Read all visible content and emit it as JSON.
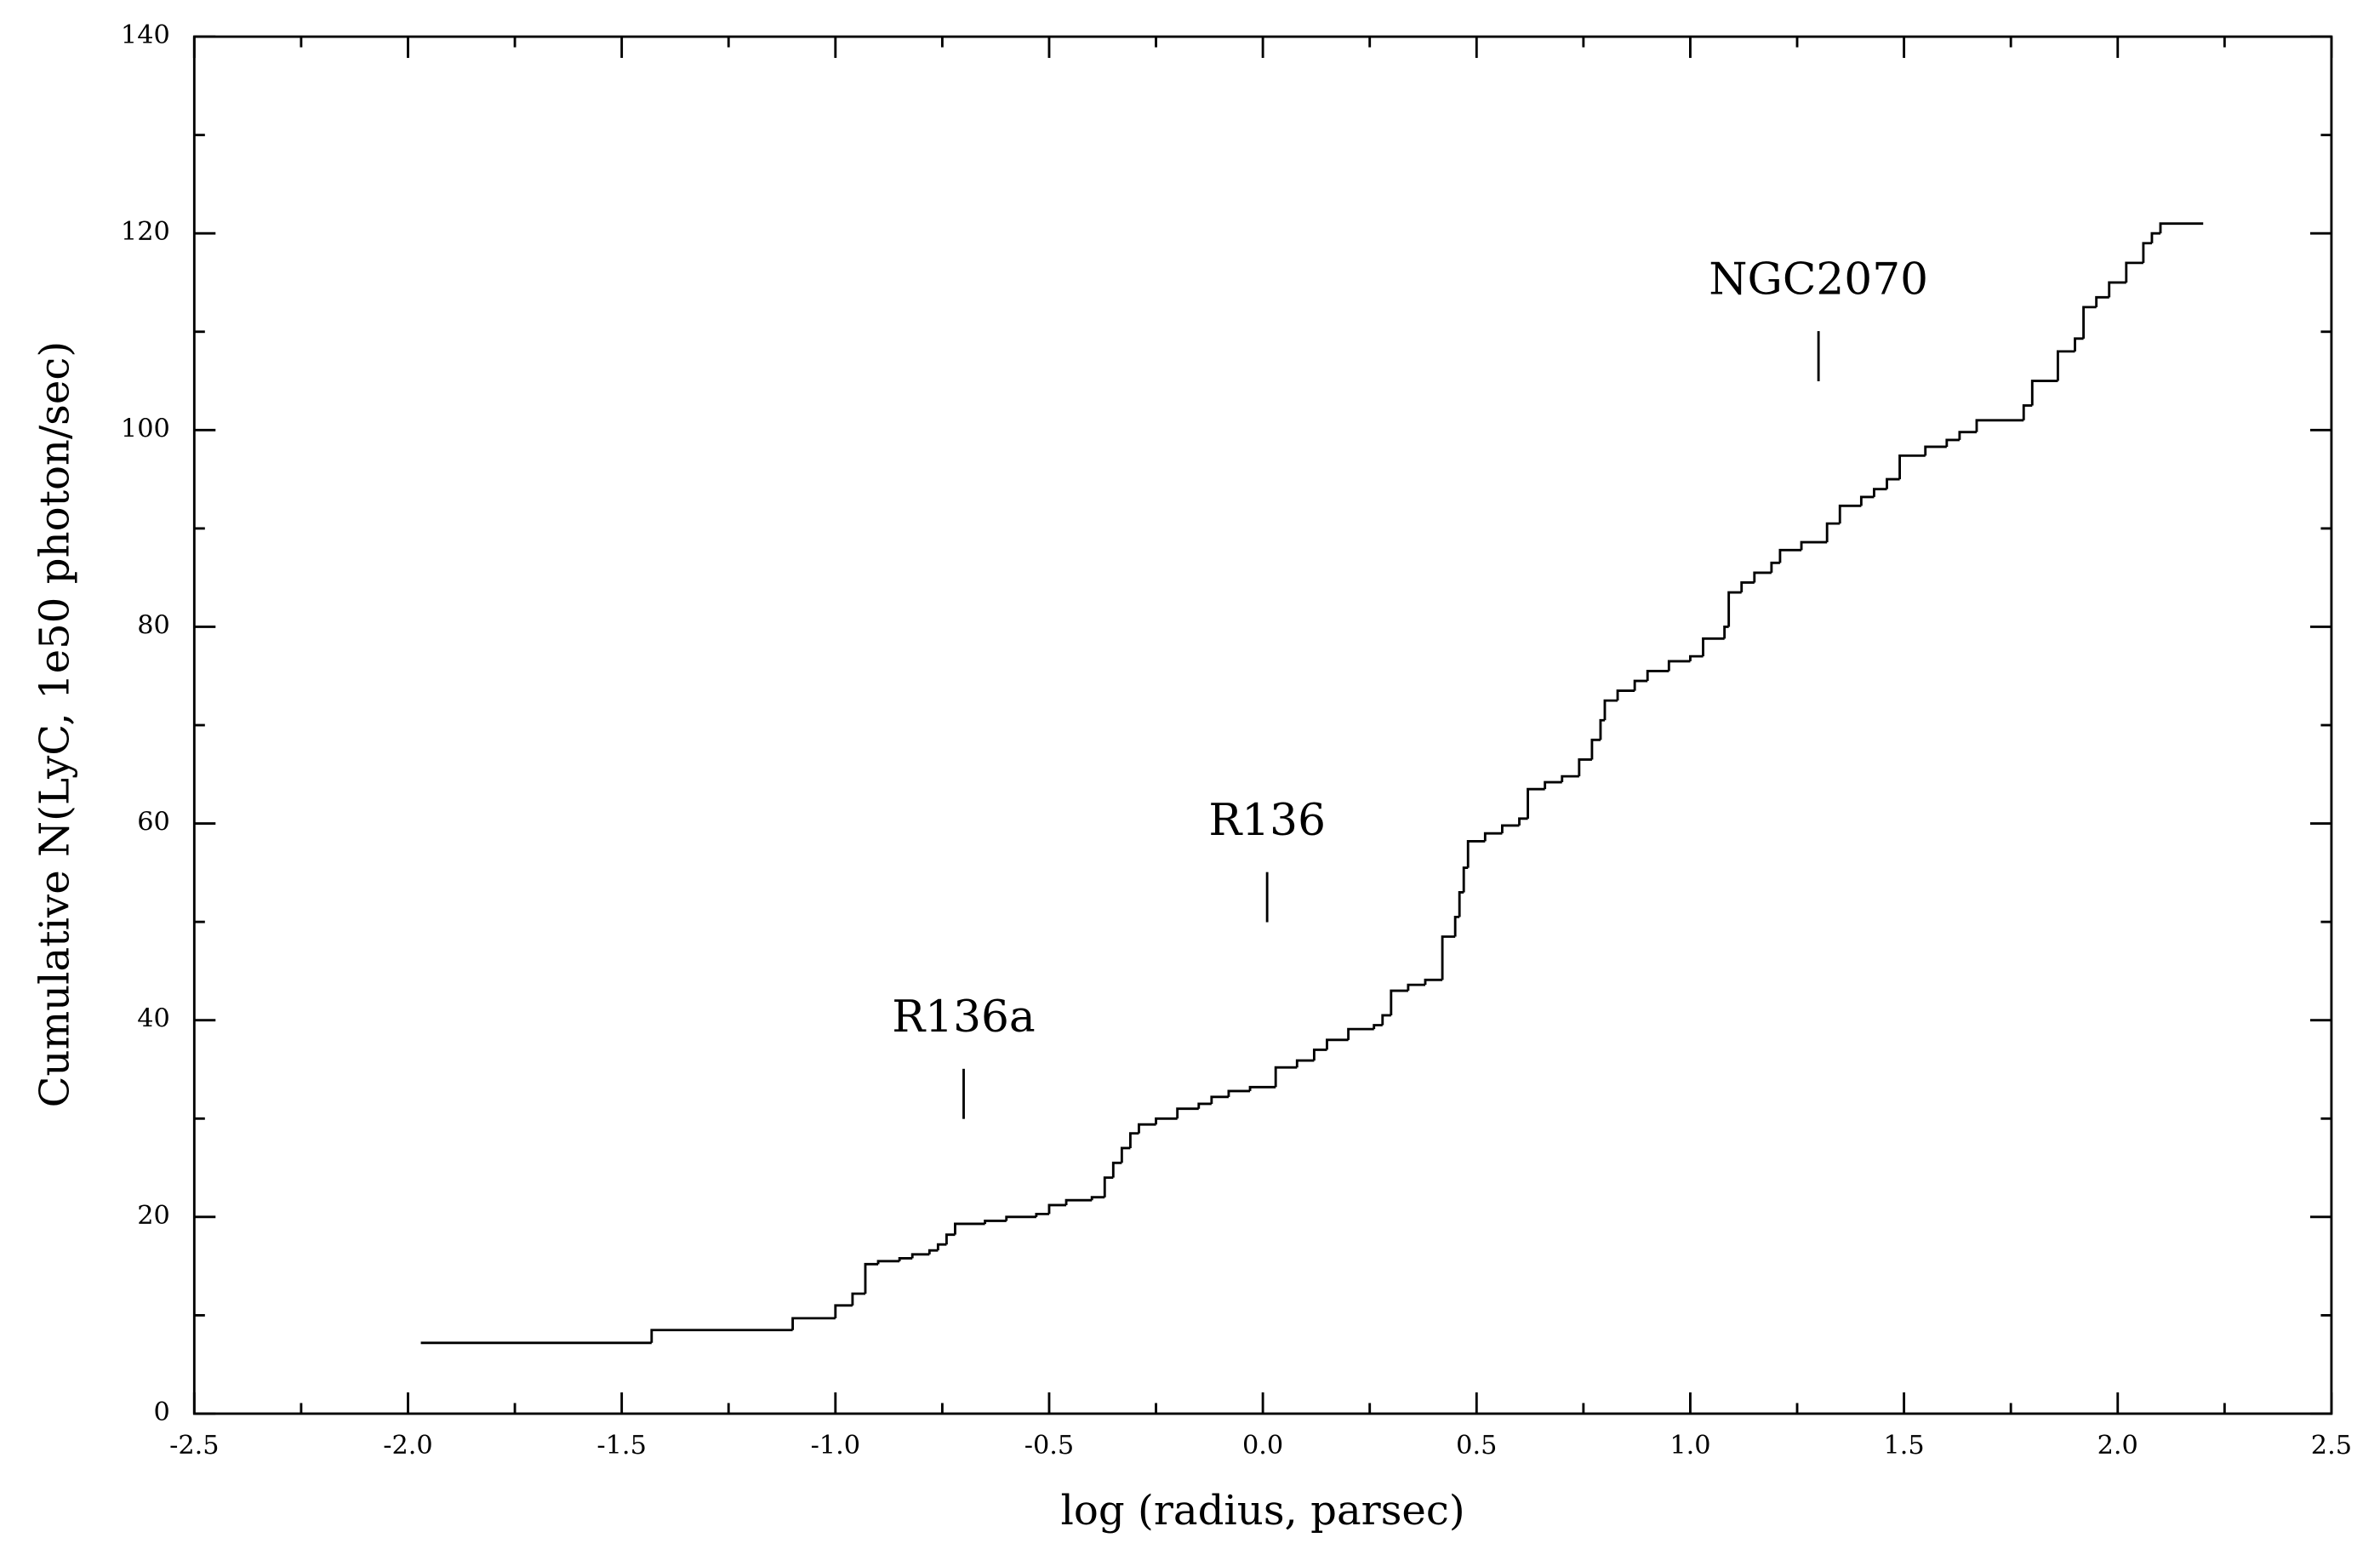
{
  "chart_data": {
    "type": "step",
    "xlabel": "log (radius, parsec)",
    "ylabel": "Cumulative N(LyC, 1e50 photon/sec)",
    "xlim": [
      -2.5,
      2.5
    ],
    "ylim": [
      0,
      140
    ],
    "xticks": [
      -2.5,
      {
        "value": -2,
        "label": "-2.0"
      },
      -1.5,
      {
        "value": -1,
        "label": "-1.0"
      },
      -0.5,
      {
        "value": 0,
        "label": "0.0"
      },
      0.5,
      {
        "value": 1,
        "label": "1.0"
      },
      1.5,
      {
        "value": 2,
        "label": "2.0"
      },
      2.5
    ],
    "yticks": [
      0,
      20,
      40,
      60,
      80,
      100,
      120,
      140
    ],
    "series": [
      {
        "color": "#000000",
        "x": [
          -1.97,
          -1.43,
          -1.1,
          -1.0,
          -0.96,
          -0.93,
          -0.9,
          -0.85,
          -0.82,
          -0.78,
          -0.76,
          -0.74,
          -0.72,
          -0.65,
          -0.6,
          -0.53,
          -0.5,
          -0.46,
          -0.4,
          -0.37,
          -0.35,
          -0.33,
          -0.31,
          -0.29,
          -0.25,
          -0.2,
          -0.15,
          -0.12,
          -0.08,
          -0.03,
          0.03,
          0.08,
          0.12,
          0.15,
          0.2,
          0.26,
          0.28,
          0.3,
          0.34,
          0.38,
          0.42,
          0.45,
          0.46,
          0.47,
          0.48,
          0.52,
          0.56,
          0.6,
          0.62,
          0.66,
          0.7,
          0.74,
          0.77,
          0.79,
          0.8,
          0.83,
          0.87,
          0.9,
          0.95,
          1.0,
          1.03,
          1.08,
          1.09,
          1.12,
          1.15,
          1.19,
          1.21,
          1.26,
          1.32,
          1.35,
          1.4,
          1.43,
          1.46,
          1.49,
          1.55,
          1.6,
          1.63,
          1.67,
          1.78,
          1.8,
          1.86,
          1.9,
          1.92,
          1.95,
          1.98,
          2.02,
          2.06,
          2.08,
          2.1,
          2.2
        ],
        "y": [
          7.2,
          8.5,
          9.7,
          11,
          12.2,
          15.2,
          15.5,
          15.8,
          16.2,
          16.6,
          17.2,
          18.2,
          19.3,
          19.6,
          20.0,
          20.3,
          21.2,
          21.7,
          22.0,
          24.0,
          25.5,
          27.0,
          28.5,
          29.4,
          30.0,
          31.0,
          31.5,
          32.2,
          32.8,
          33.2,
          35.2,
          35.9,
          37.0,
          38.0,
          39.1,
          39.5,
          40.5,
          43.0,
          43.6,
          44.1,
          48.5,
          50.5,
          53,
          55.5,
          58.2,
          59.0,
          59.8,
          60.5,
          63.5,
          64.2,
          64.8,
          66.5,
          68.5,
          70.5,
          72.5,
          73.5,
          74.5,
          75.5,
          76.5,
          77.0,
          78.8,
          80.0,
          83.5,
          84.5,
          85.5,
          86.5,
          87.8,
          88.6,
          90.5,
          92.3,
          93.2,
          94.0,
          95.0,
          97.4,
          98.3,
          99.0,
          99.8,
          101.0,
          102.5,
          105.0,
          108.0,
          109.3,
          112.5,
          113.5,
          115.0,
          117.0,
          119.0,
          120.0,
          121.0,
          121.0
        ]
      }
    ],
    "annotations": [
      {
        "text": "R136a",
        "x": -0.7,
        "y": 40
      },
      {
        "text": "R136",
        "x": 0.01,
        "y": 60
      },
      {
        "text": "NGC2070",
        "x": 1.3,
        "y": 115
      }
    ]
  }
}
